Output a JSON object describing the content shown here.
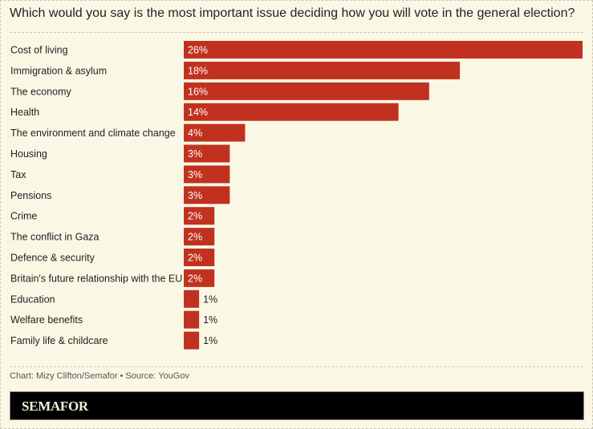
{
  "chart_data": {
    "type": "bar",
    "orientation": "horizontal",
    "title": "Which would you say is the most important issue deciding how you will vote in the general election?",
    "categories": [
      "Cost of living",
      "Immigration & asylum",
      "The economy",
      "Health",
      "The environment and climate change",
      "Housing",
      "Tax",
      "Pensions",
      "Crime",
      "The conflict in Gaza",
      "Defence & security",
      "Britain's future relationship with the EU",
      "Education",
      "Welfare benefits",
      "Family life & childcare"
    ],
    "values": [
      26,
      18,
      16,
      14,
      4,
      3,
      3,
      3,
      2,
      2,
      2,
      2,
      1,
      1,
      1
    ],
    "value_suffix": "%",
    "bar_color": "#c0321f",
    "grid": false
  },
  "credit": "Chart: Mizy Clifton/Semafor • Source: YouGov",
  "brand": "SEMAFOR"
}
